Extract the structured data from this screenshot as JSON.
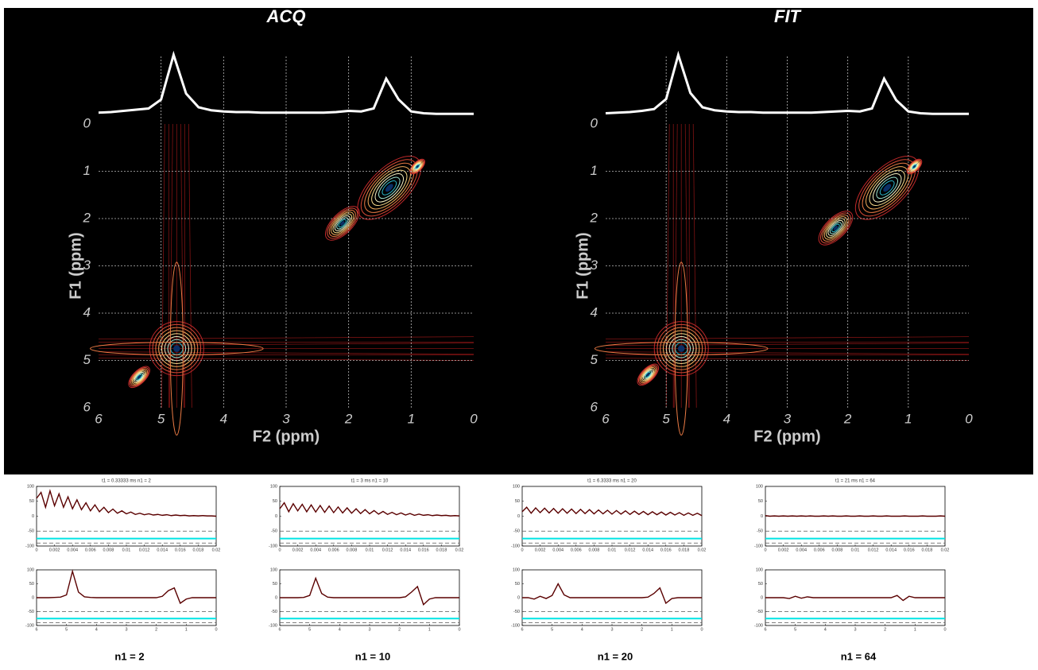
{
  "chart_data": [
    {
      "type": "contour",
      "title": "ACQ",
      "x_label": "F2 (ppm)",
      "y_label": "F1 (ppm)",
      "xlim": [
        6,
        0
      ],
      "ylim": [
        0,
        6
      ],
      "xticks": [
        6,
        5,
        4,
        3,
        2,
        1,
        0
      ],
      "yticks": [
        0,
        1,
        2,
        3,
        4,
        5,
        6
      ],
      "grid": true,
      "x": [
        4.75,
        1.35,
        2.1,
        5.35,
        0.9
      ],
      "y": [
        4.75,
        1.35,
        2.1,
        5.35,
        0.9
      ],
      "projection_x": [
        6,
        5.8,
        5.6,
        5.4,
        5.2,
        5,
        4.8,
        4.6,
        4.4,
        4.2,
        4,
        3.8,
        3.6,
        3.4,
        3.2,
        3,
        2.8,
        2.6,
        2.4,
        2.2,
        2,
        1.8,
        1.6,
        1.4,
        1.2,
        1,
        0.8,
        0.6,
        0.4,
        0.2,
        0
      ],
      "projection": [
        3,
        4,
        6,
        8,
        10,
        25,
        100,
        35,
        12,
        7,
        5,
        4,
        4,
        3,
        3,
        3,
        3,
        3,
        3,
        4,
        6,
        5,
        10,
        60,
        25,
        5,
        2,
        1,
        1,
        1,
        1
      ]
    },
    {
      "type": "contour",
      "title": "FIT",
      "x_label": "F2 (ppm)",
      "y_label": "F1 (ppm)",
      "xlim": [
        6,
        0
      ],
      "ylim": [
        0,
        6
      ],
      "xticks": [
        6,
        5,
        4,
        3,
        2,
        1,
        0
      ],
      "yticks": [
        0,
        1,
        2,
        3,
        4,
        5,
        6
      ],
      "grid": true,
      "x": [
        4.75,
        1.35,
        2.2,
        5.3,
        0.9
      ],
      "y": [
        4.75,
        1.35,
        2.2,
        5.3,
        0.9
      ],
      "projection_x": [
        6,
        5.8,
        5.6,
        5.4,
        5.2,
        5,
        4.8,
        4.6,
        4.4,
        4.2,
        4,
        3.8,
        3.6,
        3.4,
        3.2,
        3,
        2.8,
        2.6,
        2.4,
        2.2,
        2,
        1.8,
        1.6,
        1.4,
        1.2,
        1,
        0.8,
        0.6,
        0.4,
        0.2,
        0
      ],
      "projection": [
        2,
        3,
        4,
        6,
        9,
        26,
        100,
        36,
        12,
        7,
        5,
        4,
        4,
        3,
        3,
        3,
        3,
        3,
        4,
        5,
        6,
        5,
        10,
        60,
        24,
        5,
        2,
        1,
        1,
        1,
        1
      ]
    },
    {
      "type": "line",
      "title": "t1 =  0.33333 ms     n1 = 2",
      "xlim": [
        0,
        0.02
      ],
      "ylim": [
        -100,
        100
      ],
      "xticks": [
        0,
        0.002,
        0.004,
        0.006,
        0.008,
        0.01,
        0.012,
        0.014,
        0.016,
        0.018,
        0.02
      ],
      "yticks": [
        -100,
        -50,
        0,
        50,
        100
      ],
      "hlines": [
        {
          "value": -50,
          "color": "#555555"
        },
        {
          "value": -75,
          "color": "#00e5e5"
        },
        {
          "value": -90,
          "color": "#555555"
        }
      ],
      "x": [
        0,
        0.0005,
        0.001,
        0.0015,
        0.002,
        0.0025,
        0.003,
        0.0035,
        0.004,
        0.0045,
        0.005,
        0.0055,
        0.006,
        0.0065,
        0.007,
        0.0075,
        0.008,
        0.0085,
        0.009,
        0.0095,
        0.01,
        0.0105,
        0.011,
        0.0115,
        0.012,
        0.0125,
        0.013,
        0.0135,
        0.014,
        0.0145,
        0.015,
        0.0155,
        0.016,
        0.0165,
        0.017,
        0.0175,
        0.018,
        0.0185,
        0.019,
        0.0195,
        0.02
      ],
      "series": [
        {
          "color": "#5a0000",
          "values": [
            60,
            80,
            30,
            85,
            35,
            75,
            30,
            65,
            25,
            55,
            22,
            45,
            18,
            38,
            15,
            30,
            12,
            24,
            10,
            18,
            8,
            14,
            6,
            10,
            5,
            8,
            4,
            6,
            3,
            5,
            2,
            4,
            2,
            3,
            1,
            2,
            1,
            2,
            1,
            1,
            0
          ]
        }
      ]
    },
    {
      "type": "line",
      "title": "t1 =   3 ms     n1 = 10",
      "xlim": [
        0,
        0.02
      ],
      "ylim": [
        -100,
        100
      ],
      "xticks": [
        0,
        0.002,
        0.004,
        0.006,
        0.008,
        0.01,
        0.012,
        0.014,
        0.016,
        0.018,
        0.02
      ],
      "yticks": [
        -100,
        -50,
        0,
        50,
        100
      ],
      "hlines": [
        {
          "value": -50,
          "color": "#555555"
        },
        {
          "value": -75,
          "color": "#00e5e5"
        },
        {
          "value": -90,
          "color": "#555555"
        }
      ],
      "x": [
        0,
        0.0005,
        0.001,
        0.0015,
        0.002,
        0.0025,
        0.003,
        0.0035,
        0.004,
        0.0045,
        0.005,
        0.0055,
        0.006,
        0.0065,
        0.007,
        0.0075,
        0.008,
        0.0085,
        0.009,
        0.0095,
        0.01,
        0.0105,
        0.011,
        0.0115,
        0.012,
        0.0125,
        0.013,
        0.0135,
        0.014,
        0.0145,
        0.015,
        0.0155,
        0.016,
        0.0165,
        0.017,
        0.0175,
        0.018,
        0.0185,
        0.019,
        0.0195,
        0.02
      ],
      "series": [
        {
          "color": "#5a0000",
          "values": [
            25,
            45,
            15,
            42,
            18,
            40,
            15,
            38,
            14,
            36,
            13,
            34,
            12,
            31,
            11,
            28,
            10,
            25,
            9,
            22,
            8,
            19,
            7,
            16,
            6,
            13,
            5,
            11,
            4,
            9,
            3,
            7,
            3,
            5,
            2,
            4,
            2,
            3,
            1,
            2,
            1
          ]
        }
      ]
    },
    {
      "type": "line",
      "title": "t1 =  6.3333 ms     n1 = 20",
      "xlim": [
        0,
        0.02
      ],
      "ylim": [
        -100,
        100
      ],
      "xticks": [
        0,
        0.002,
        0.004,
        0.006,
        0.008,
        0.01,
        0.012,
        0.014,
        0.016,
        0.018,
        0.02
      ],
      "yticks": [
        -100,
        -50,
        0,
        50,
        100
      ],
      "hlines": [
        {
          "value": -50,
          "color": "#555555"
        },
        {
          "value": -75,
          "color": "#00e5e5"
        },
        {
          "value": -90,
          "color": "#555555"
        }
      ],
      "x": [
        0,
        0.0005,
        0.001,
        0.0015,
        0.002,
        0.0025,
        0.003,
        0.0035,
        0.004,
        0.0045,
        0.005,
        0.0055,
        0.006,
        0.0065,
        0.007,
        0.0075,
        0.008,
        0.0085,
        0.009,
        0.0095,
        0.01,
        0.0105,
        0.011,
        0.0115,
        0.012,
        0.0125,
        0.013,
        0.0135,
        0.014,
        0.0145,
        0.015,
        0.0155,
        0.016,
        0.0165,
        0.017,
        0.0175,
        0.018,
        0.0185,
        0.019,
        0.0195,
        0.02
      ],
      "series": [
        {
          "color": "#5a0000",
          "values": [
            15,
            30,
            10,
            28,
            12,
            27,
            11,
            26,
            10,
            25,
            10,
            24,
            9,
            23,
            9,
            22,
            8,
            21,
            8,
            20,
            7,
            19,
            7,
            18,
            6,
            17,
            6,
            16,
            5,
            15,
            5,
            14,
            4,
            13,
            4,
            12,
            3,
            11,
            3,
            10,
            2
          ]
        }
      ]
    },
    {
      "type": "line",
      "title": "t1 =   21 ms     n1 = 64",
      "xlim": [
        0,
        0.02
      ],
      "ylim": [
        -100,
        100
      ],
      "xticks": [
        0,
        0.002,
        0.004,
        0.006,
        0.008,
        0.01,
        0.012,
        0.014,
        0.016,
        0.018,
        0.02
      ],
      "yticks": [
        -100,
        -50,
        0,
        50,
        100
      ],
      "hlines": [
        {
          "value": -50,
          "color": "#555555"
        },
        {
          "value": -75,
          "color": "#00e5e5"
        },
        {
          "value": -90,
          "color": "#555555"
        }
      ],
      "x": [
        0,
        0.0005,
        0.001,
        0.0015,
        0.002,
        0.0025,
        0.003,
        0.0035,
        0.004,
        0.0045,
        0.005,
        0.0055,
        0.006,
        0.0065,
        0.007,
        0.0075,
        0.008,
        0.0085,
        0.009,
        0.0095,
        0.01,
        0.0105,
        0.011,
        0.0115,
        0.012,
        0.0125,
        0.013,
        0.0135,
        0.014,
        0.0145,
        0.015,
        0.0155,
        0.016,
        0.0165,
        0.017,
        0.0175,
        0.018,
        0.0185,
        0.019,
        0.0195,
        0.02
      ],
      "series": [
        {
          "color": "#5a0000",
          "values": [
            2,
            0,
            1,
            0,
            1,
            0,
            1,
            0,
            1,
            0,
            1,
            0,
            0,
            1,
            0,
            1,
            0,
            0,
            1,
            0,
            0,
            1,
            0,
            0,
            1,
            0,
            0,
            1,
            0,
            0,
            0,
            1,
            0,
            0,
            0,
            1,
            0,
            0,
            0,
            1,
            0
          ]
        }
      ]
    },
    {
      "type": "line",
      "xlim": [
        6,
        0
      ],
      "ylim": [
        -100,
        100
      ],
      "xticks": [
        6,
        5,
        4,
        3,
        2,
        1,
        0
      ],
      "yticks": [
        -100,
        -50,
        0,
        50,
        100
      ],
      "hlines": [
        {
          "value": -50,
          "color": "#555555"
        },
        {
          "value": -75,
          "color": "#00e5e5"
        },
        {
          "value": -90,
          "color": "#555555"
        }
      ],
      "x": [
        6,
        5.8,
        5.6,
        5.4,
        5.2,
        5,
        4.8,
        4.6,
        4.4,
        4.2,
        4,
        3.8,
        3.6,
        3.4,
        3.2,
        3,
        2.8,
        2.6,
        2.4,
        2.2,
        2,
        1.8,
        1.6,
        1.4,
        1.2,
        1,
        0.8,
        0.6,
        0.4,
        0.2,
        0
      ],
      "series": [
        {
          "color": "#5a0000",
          "values": [
            0,
            0,
            0,
            1,
            2,
            10,
            95,
            20,
            3,
            1,
            0,
            0,
            0,
            0,
            0,
            0,
            0,
            0,
            0,
            0,
            0,
            5,
            25,
            35,
            -20,
            -5,
            0,
            0,
            0,
            0,
            0
          ]
        }
      ]
    },
    {
      "type": "line",
      "xlim": [
        6,
        0
      ],
      "ylim": [
        -100,
        100
      ],
      "xticks": [
        6,
        5,
        4,
        3,
        2,
        1,
        0
      ],
      "yticks": [
        -100,
        -50,
        0,
        50,
        100
      ],
      "hlines": [
        {
          "value": -50,
          "color": "#555555"
        },
        {
          "value": -75,
          "color": "#00e5e5"
        },
        {
          "value": -90,
          "color": "#555555"
        }
      ],
      "x": [
        6,
        5.8,
        5.6,
        5.4,
        5.2,
        5,
        4.8,
        4.6,
        4.4,
        4.2,
        4,
        3.8,
        3.6,
        3.4,
        3.2,
        3,
        2.8,
        2.6,
        2.4,
        2.2,
        2,
        1.8,
        1.6,
        1.4,
        1.2,
        1,
        0.8,
        0.6,
        0.4,
        0.2,
        0
      ],
      "series": [
        {
          "color": "#5a0000",
          "values": [
            0,
            0,
            0,
            0,
            1,
            8,
            70,
            15,
            2,
            0,
            0,
            0,
            0,
            0,
            0,
            0,
            0,
            0,
            0,
            0,
            0,
            3,
            20,
            40,
            -25,
            -5,
            0,
            0,
            0,
            0,
            0
          ]
        }
      ]
    },
    {
      "type": "line",
      "xlim": [
        6,
        0
      ],
      "ylim": [
        -100,
        100
      ],
      "xticks": [
        6,
        5,
        4,
        3,
        2,
        1,
        0
      ],
      "yticks": [
        -100,
        -50,
        0,
        50,
        100
      ],
      "hlines": [
        {
          "value": -50,
          "color": "#555555"
        },
        {
          "value": -75,
          "color": "#00e5e5"
        },
        {
          "value": -90,
          "color": "#555555"
        }
      ],
      "x": [
        6,
        5.8,
        5.6,
        5.4,
        5.2,
        5,
        4.8,
        4.6,
        4.4,
        4.2,
        4,
        3.8,
        3.6,
        3.4,
        3.2,
        3,
        2.8,
        2.6,
        2.4,
        2.2,
        2,
        1.8,
        1.6,
        1.4,
        1.2,
        1,
        0.8,
        0.6,
        0.4,
        0.2,
        0
      ],
      "series": [
        {
          "color": "#5a0000",
          "values": [
            0,
            0,
            -5,
            5,
            -3,
            8,
            50,
            10,
            0,
            0,
            0,
            0,
            0,
            0,
            0,
            0,
            0,
            0,
            0,
            0,
            0,
            2,
            15,
            35,
            -20,
            -3,
            0,
            0,
            0,
            0,
            0
          ]
        }
      ]
    },
    {
      "type": "line",
      "xlim": [
        6,
        0
      ],
      "ylim": [
        -100,
        100
      ],
      "xticks": [
        6,
        5,
        4,
        3,
        2,
        1,
        0
      ],
      "yticks": [
        -100,
        -50,
        0,
        50,
        100
      ],
      "hlines": [
        {
          "value": -50,
          "color": "#555555"
        },
        {
          "value": -75,
          "color": "#00e5e5"
        },
        {
          "value": -90,
          "color": "#555555"
        }
      ],
      "x": [
        6,
        5.8,
        5.6,
        5.4,
        5.2,
        5,
        4.8,
        4.6,
        4.4,
        4.2,
        4,
        3.8,
        3.6,
        3.4,
        3.2,
        3,
        2.8,
        2.6,
        2.4,
        2.2,
        2,
        1.8,
        1.6,
        1.4,
        1.2,
        1,
        0.8,
        0.6,
        0.4,
        0.2,
        0
      ],
      "series": [
        {
          "color": "#5a0000",
          "values": [
            0,
            0,
            0,
            0,
            -3,
            5,
            -2,
            3,
            0,
            0,
            0,
            0,
            0,
            0,
            0,
            0,
            0,
            0,
            0,
            0,
            0,
            0,
            8,
            -10,
            5,
            0,
            0,
            0,
            0,
            0,
            0
          ]
        }
      ]
    }
  ],
  "captions": [
    "n1 = 2",
    "n1 = 10",
    "n1 = 20",
    "n1 = 64"
  ]
}
